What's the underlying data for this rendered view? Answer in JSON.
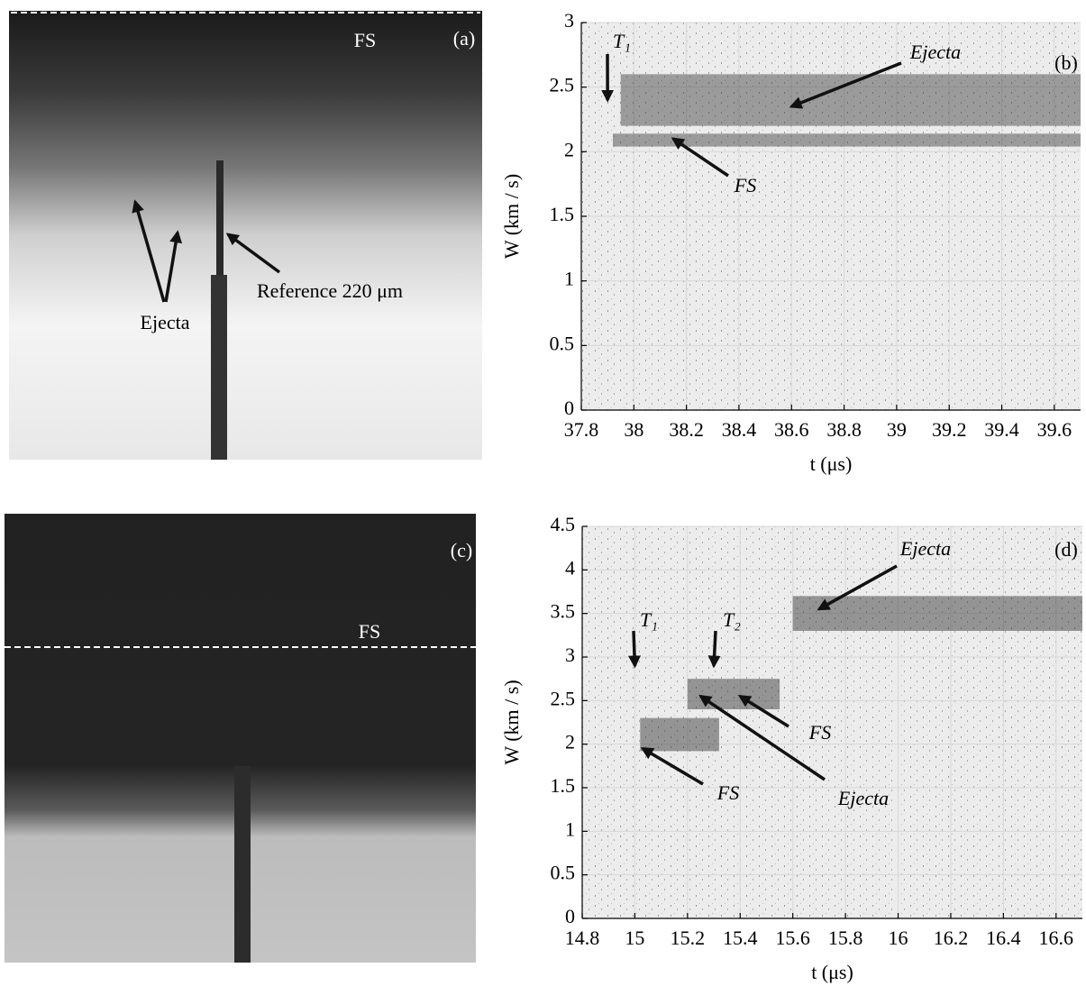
{
  "images": [
    {
      "panel": "(a)",
      "labels": [
        "FS",
        "Ejecta",
        "Reference 220 μm"
      ]
    },
    {
      "panel": "(c)",
      "labels": [
        "FS"
      ]
    }
  ],
  "chart_data": [
    {
      "type": "spectrogram",
      "panel": "(b)",
      "xlabel": "t (μs)",
      "ylabel": "W (km / s)",
      "xlim": [
        37.8,
        39.7
      ],
      "xticks": [
        37.8,
        38,
        38.2,
        38.4,
        38.6,
        38.8,
        39,
        39.2,
        39.4,
        39.6
      ],
      "ylim": [
        0,
        3
      ],
      "yticks": [
        0,
        0.5,
        1,
        1.5,
        2,
        2.5,
        3
      ],
      "color": "#3a3a3a",
      "bands": [
        {
          "x": [
            37.92,
            39.7
          ],
          "y": [
            2.04,
            2.14
          ]
        },
        {
          "x": [
            37.95,
            39.7
          ],
          "y": [
            2.2,
            2.6
          ]
        }
      ],
      "annotations": [
        {
          "text": "T₁",
          "x": 37.9,
          "y": 2.4
        },
        {
          "text": "Ejecta",
          "x": 38.6,
          "y": 2.35
        },
        {
          "text": "FS",
          "x": 38.15,
          "y": 2.1
        }
      ]
    },
    {
      "type": "spectrogram",
      "panel": "(d)",
      "xlabel": "t (μs)",
      "ylabel": "W (km / s)",
      "xlim": [
        14.8,
        16.7
      ],
      "xticks": [
        14.8,
        15,
        15.2,
        15.4,
        15.6,
        15.8,
        16,
        16.2,
        16.4,
        16.6
      ],
      "ylim": [
        0,
        4.5
      ],
      "yticks": [
        0,
        0.5,
        1,
        1.5,
        2,
        2.5,
        3,
        3.5,
        4,
        4.5
      ],
      "color": "#2a2a2a",
      "bands": [
        {
          "x": [
            15.02,
            15.32
          ],
          "y": [
            1.92,
            2.3
          ]
        },
        {
          "x": [
            15.2,
            15.55
          ],
          "y": [
            2.4,
            2.75
          ]
        },
        {
          "x": [
            15.6,
            16.7
          ],
          "y": [
            3.3,
            3.7
          ]
        }
      ],
      "annotations": [
        {
          "text": "T₁",
          "x": 15.0,
          "y": 2.9
        },
        {
          "text": "T₂",
          "x": 15.3,
          "y": 2.9
        },
        {
          "text": "Ejecta",
          "x": 15.7,
          "y": 3.55
        },
        {
          "text": "Ejecta",
          "x": 15.25,
          "y": 2.55
        },
        {
          "text": "FS",
          "x": 15.4,
          "y": 2.55
        },
        {
          "text": "FS",
          "x": 15.03,
          "y": 1.95
        }
      ]
    }
  ]
}
